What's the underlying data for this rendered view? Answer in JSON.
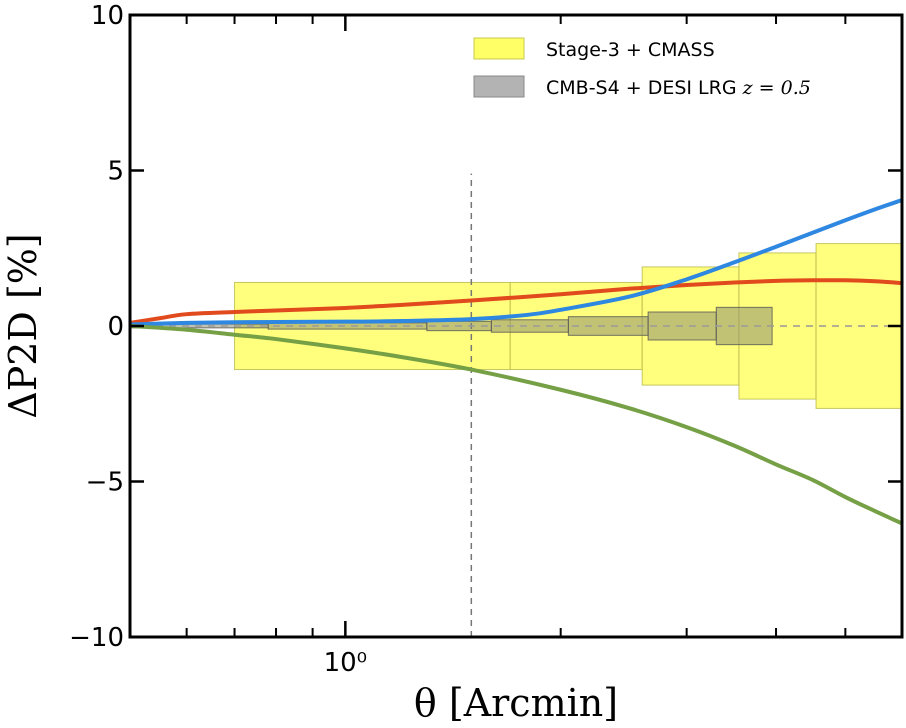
{
  "chart_data": {
    "type": "line",
    "title": "",
    "xlabel": "θ [Arcmin]",
    "ylabel": "ΔP2D [%]",
    "xscale": "log",
    "xlim": [
      0.5,
      6.0
    ],
    "ylim": [
      -10,
      10
    ],
    "yticks": [
      {
        "value": 10,
        "label": "10"
      },
      {
        "value": 5,
        "label": "5"
      },
      {
        "value": 0,
        "label": "0"
      },
      {
        "value": -5,
        "label": "−5"
      },
      {
        "value": -10,
        "label": "−10"
      }
    ],
    "xticks_major": [
      {
        "value": 1.0,
        "label": "10⁰"
      }
    ],
    "xticks_minor": [
      0.6,
      0.7,
      0.8,
      0.9,
      2,
      3,
      4,
      5,
      6
    ],
    "reference_lines": [
      {
        "orientation": "vertical",
        "x": 1.5,
        "from_y": -10,
        "to_y": 4.9,
        "style": "dashed",
        "color": "#777777"
      },
      {
        "orientation": "horizontal",
        "y": 0,
        "style": "dashed",
        "color": "#999999"
      }
    ],
    "legend": {
      "position": "top-right",
      "entries": [
        {
          "label": "Stage-3 + CMASS",
          "suffix": "",
          "color": "#ffff66",
          "edge": "#c8c850"
        },
        {
          "label": "CMB-S4 + DESI LRG ",
          "suffix": "z = 0.5",
          "color": "#b3b3b3",
          "edge": "#888888"
        }
      ]
    },
    "band_series": [
      {
        "name": "Stage-3 + CMASS",
        "color": "#ffff66",
        "edge": "#b8b84a",
        "opacity": 0.85,
        "bins": [
          {
            "x0": 0.7,
            "x1": 1.7,
            "half_height": 1.4
          },
          {
            "x0": 1.7,
            "x1": 2.6,
            "half_height": 1.4
          },
          {
            "x0": 2.6,
            "x1": 3.55,
            "half_height": 1.9
          },
          {
            "x0": 3.55,
            "x1": 4.55,
            "half_height": 2.35
          },
          {
            "x0": 4.55,
            "x1": 6.0,
            "half_height": 2.65
          }
        ]
      },
      {
        "name": "CMB-S4 + DESI LRG z=0.5",
        "color": "#8f8f70",
        "edge": "#555555",
        "opacity": 0.55,
        "bins": [
          {
            "x0": 0.5,
            "x1": 0.78,
            "half_height": 0.06
          },
          {
            "x0": 0.78,
            "x1": 1.3,
            "half_height": 0.1
          },
          {
            "x0": 1.3,
            "x1": 1.6,
            "half_height": 0.15
          },
          {
            "x0": 1.6,
            "x1": 2.05,
            "half_height": 0.2
          },
          {
            "x0": 2.05,
            "x1": 2.65,
            "half_height": 0.3
          },
          {
            "x0": 2.65,
            "x1": 3.3,
            "half_height": 0.45
          },
          {
            "x0": 3.3,
            "x1": 3.95,
            "half_height": 0.6
          }
        ]
      }
    ],
    "series": [
      {
        "name": "red",
        "color": "#e04a1c",
        "x": [
          0.5,
          0.55,
          0.6,
          0.7,
          0.8,
          1.0,
          1.2,
          1.5,
          2.0,
          2.5,
          3.0,
          3.5,
          4.0,
          4.5,
          5.0,
          5.5,
          6.0
        ],
        "y": [
          0.1,
          0.25,
          0.38,
          0.45,
          0.5,
          0.58,
          0.68,
          0.82,
          1.02,
          1.2,
          1.32,
          1.4,
          1.45,
          1.47,
          1.47,
          1.44,
          1.38
        ]
      },
      {
        "name": "blue",
        "color": "#2e87e0",
        "x": [
          0.5,
          0.6,
          0.7,
          0.8,
          1.0,
          1.2,
          1.5,
          1.8,
          2.0,
          2.5,
          3.0,
          3.5,
          4.0,
          4.5,
          5.0,
          5.5,
          6.0
        ],
        "y": [
          0.05,
          0.1,
          0.12,
          0.13,
          0.14,
          0.16,
          0.22,
          0.36,
          0.52,
          0.95,
          1.5,
          2.05,
          2.55,
          3.0,
          3.4,
          3.75,
          4.05
        ]
      },
      {
        "name": "green",
        "color": "#76a046",
        "x": [
          0.5,
          0.6,
          0.7,
          0.8,
          1.0,
          1.2,
          1.5,
          2.0,
          2.5,
          3.0,
          3.5,
          4.0,
          4.5,
          5.0,
          5.5,
          6.0
        ],
        "y": [
          0.0,
          -0.12,
          -0.28,
          -0.42,
          -0.72,
          -1.0,
          -1.4,
          -2.05,
          -2.65,
          -3.25,
          -3.85,
          -4.45,
          -4.95,
          -5.5,
          -5.95,
          -6.35
        ]
      }
    ]
  }
}
